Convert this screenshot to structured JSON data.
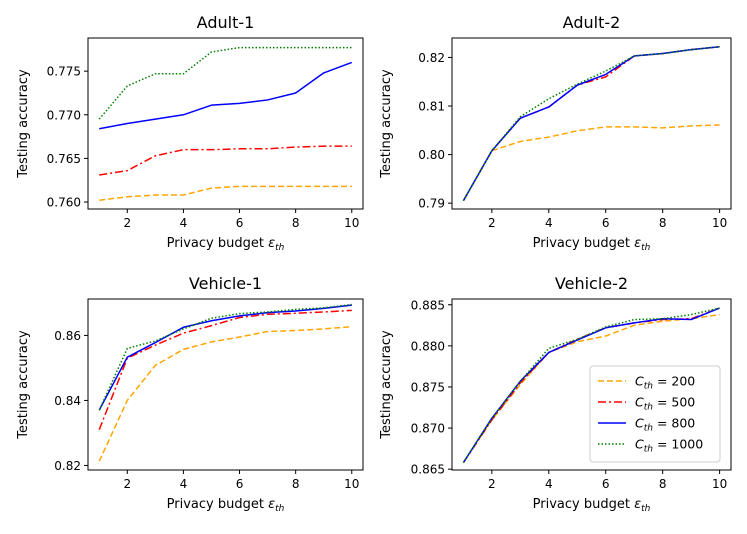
{
  "chart_data": [
    {
      "type": "line",
      "title": "Adult-1",
      "xlabel": "Privacy budget",
      "xlabel_symbol": "ε",
      "xlabel_sub": "th",
      "ylabel": "Testing accuracy",
      "xlim": [
        0.6,
        10.4
      ],
      "ylim": [
        0.7592,
        0.7788
      ],
      "xticks": [
        2,
        4,
        6,
        8,
        10
      ],
      "yticks": [
        0.76,
        0.765,
        0.77,
        0.775
      ],
      "ytick_decimals": 3,
      "x": [
        1,
        2,
        3,
        4,
        5,
        6,
        7,
        8,
        9,
        10
      ],
      "series": [
        {
          "name": "C_th = 200",
          "values": [
            0.7602,
            0.7606,
            0.7608,
            0.7608,
            0.7616,
            0.7618,
            0.7618,
            0.7618,
            0.7618,
            0.7618
          ]
        },
        {
          "name": "C_th = 500",
          "values": [
            0.7631,
            0.7636,
            0.7653,
            0.766,
            0.766,
            0.7661,
            0.7661,
            0.7663,
            0.7664,
            0.7664
          ]
        },
        {
          "name": "C_th = 800",
          "values": [
            0.7684,
            0.769,
            0.7695,
            0.77,
            0.7711,
            0.7713,
            0.7717,
            0.7725,
            0.7748,
            0.776
          ]
        },
        {
          "name": "C_th = 1000",
          "values": [
            0.7695,
            0.7733,
            0.7747,
            0.7747,
            0.7772,
            0.7777,
            0.7777,
            0.7777,
            0.7777,
            0.7777
          ]
        }
      ]
    },
    {
      "type": "line",
      "title": "Adult-2",
      "xlabel": "Privacy budget",
      "xlabel_symbol": "ε",
      "xlabel_sub": "th",
      "ylabel": "Testing accuracy",
      "xlim": [
        0.6,
        10.4
      ],
      "ylim": [
        0.7888,
        0.824
      ],
      "xticks": [
        2,
        4,
        6,
        8,
        10
      ],
      "yticks": [
        0.79,
        0.8,
        0.81,
        0.82
      ],
      "ytick_decimals": 2,
      "x": [
        1,
        2,
        3,
        4,
        5,
        6,
        7,
        8,
        9,
        10
      ],
      "series": [
        {
          "name": "C_th = 200",
          "x": [
            2,
            3,
            4,
            5,
            6,
            7,
            8,
            9,
            10
          ],
          "values": [
            0.8008,
            0.8027,
            0.8036,
            0.8049,
            0.8057,
            0.8057,
            0.8055,
            0.8059,
            0.8061
          ]
        },
        {
          "name": "C_th = 500",
          "values": [
            0.7905,
            0.8008,
            0.8075,
            0.8098,
            0.8143,
            0.816,
            0.8203,
            0.8208,
            0.8216,
            0.8222
          ]
        },
        {
          "name": "C_th = 800",
          "values": [
            0.7905,
            0.8008,
            0.8075,
            0.8098,
            0.8143,
            0.8165,
            0.8203,
            0.8208,
            0.8216,
            0.8222
          ]
        },
        {
          "name": "C_th = 1000",
          "values": [
            0.7905,
            0.8008,
            0.8078,
            0.8115,
            0.8145,
            0.8172,
            0.8203,
            0.8208,
            0.8216,
            0.8222
          ]
        }
      ]
    },
    {
      "type": "line",
      "title": "Vehicle-1",
      "xlabel": "Privacy budget",
      "xlabel_symbol": "ε",
      "xlabel_sub": "th",
      "ylabel": "Testing accuracy",
      "xlim": [
        0.6,
        10.4
      ],
      "ylim": [
        0.8186,
        0.8712
      ],
      "xticks": [
        2,
        4,
        6,
        8,
        10
      ],
      "yticks": [
        0.82,
        0.84,
        0.86
      ],
      "ytick_decimals": 2,
      "x": [
        1,
        2,
        3,
        4,
        5,
        6,
        7,
        8,
        9,
        10
      ],
      "series": [
        {
          "name": "C_th = 200",
          "values": [
            0.8213,
            0.84,
            0.8508,
            0.8557,
            0.858,
            0.8595,
            0.8612,
            0.8615,
            0.862,
            0.8627
          ]
        },
        {
          "name": "C_th = 500",
          "values": [
            0.831,
            0.853,
            0.857,
            0.8607,
            0.863,
            0.8655,
            0.8665,
            0.8668,
            0.8672,
            0.8677
          ]
        },
        {
          "name": "C_th = 800",
          "values": [
            0.837,
            0.8533,
            0.8578,
            0.8625,
            0.8645,
            0.866,
            0.867,
            0.8675,
            0.8683,
            0.8693
          ]
        },
        {
          "name": "C_th = 1000",
          "values": [
            0.837,
            0.856,
            0.8583,
            0.862,
            0.8653,
            0.8667,
            0.8672,
            0.868,
            0.8685,
            0.8695
          ]
        }
      ]
    },
    {
      "type": "line",
      "title": "Vehicle-2",
      "xlabel": "Privacy budget",
      "xlabel_symbol": "ε",
      "xlabel_sub": "th",
      "ylabel": "Testing accuracy",
      "xlim": [
        0.6,
        10.4
      ],
      "ylim": [
        0.8649,
        0.8857
      ],
      "xticks": [
        2,
        4,
        6,
        8,
        10
      ],
      "yticks": [
        0.865,
        0.87,
        0.875,
        0.88,
        0.885
      ],
      "ytick_decimals": 3,
      "x": [
        1,
        2,
        3,
        4,
        5,
        6,
        7,
        8,
        9,
        10
      ],
      "series": [
        {
          "name": "C_th = 200",
          "values": [
            0.8658,
            0.871,
            0.8753,
            0.8792,
            0.8805,
            0.8812,
            0.8825,
            0.883,
            0.8833,
            0.8838
          ]
        },
        {
          "name": "C_th = 500",
          "values": [
            0.8658,
            0.871,
            0.8755,
            0.8792,
            0.8808,
            0.8822,
            0.8828,
            0.8832,
            0.8833,
            0.8846
          ]
        },
        {
          "name": "C_th = 800",
          "values": [
            0.8658,
            0.8712,
            0.8757,
            0.8792,
            0.8807,
            0.8822,
            0.8828,
            0.8833,
            0.8832,
            0.8846
          ]
        },
        {
          "name": "C_th = 1000",
          "values": [
            0.8658,
            0.8712,
            0.8757,
            0.8797,
            0.8808,
            0.8823,
            0.8832,
            0.8833,
            0.8838,
            0.8846
          ]
        }
      ]
    }
  ],
  "legend": {
    "placement": "lower-right of Vehicle-2 panel",
    "entries": [
      {
        "symbol": "C",
        "sub": "th",
        "eq": " = ",
        "value": "200"
      },
      {
        "symbol": "C",
        "sub": "th",
        "eq": " = ",
        "value": "500"
      },
      {
        "symbol": "C",
        "sub": "th",
        "eq": " = ",
        "value": "800"
      },
      {
        "symbol": "C",
        "sub": "th",
        "eq": " = ",
        "value": "1000"
      }
    ]
  },
  "series_styles": [
    {
      "color": "#ffa500",
      "dash": "6 3"
    },
    {
      "color": "#ff0000",
      "dash": "8 3 2 3"
    },
    {
      "color": "#0000ff",
      "dash": ""
    },
    {
      "color": "#008000",
      "dash": "1.5 2"
    }
  ]
}
